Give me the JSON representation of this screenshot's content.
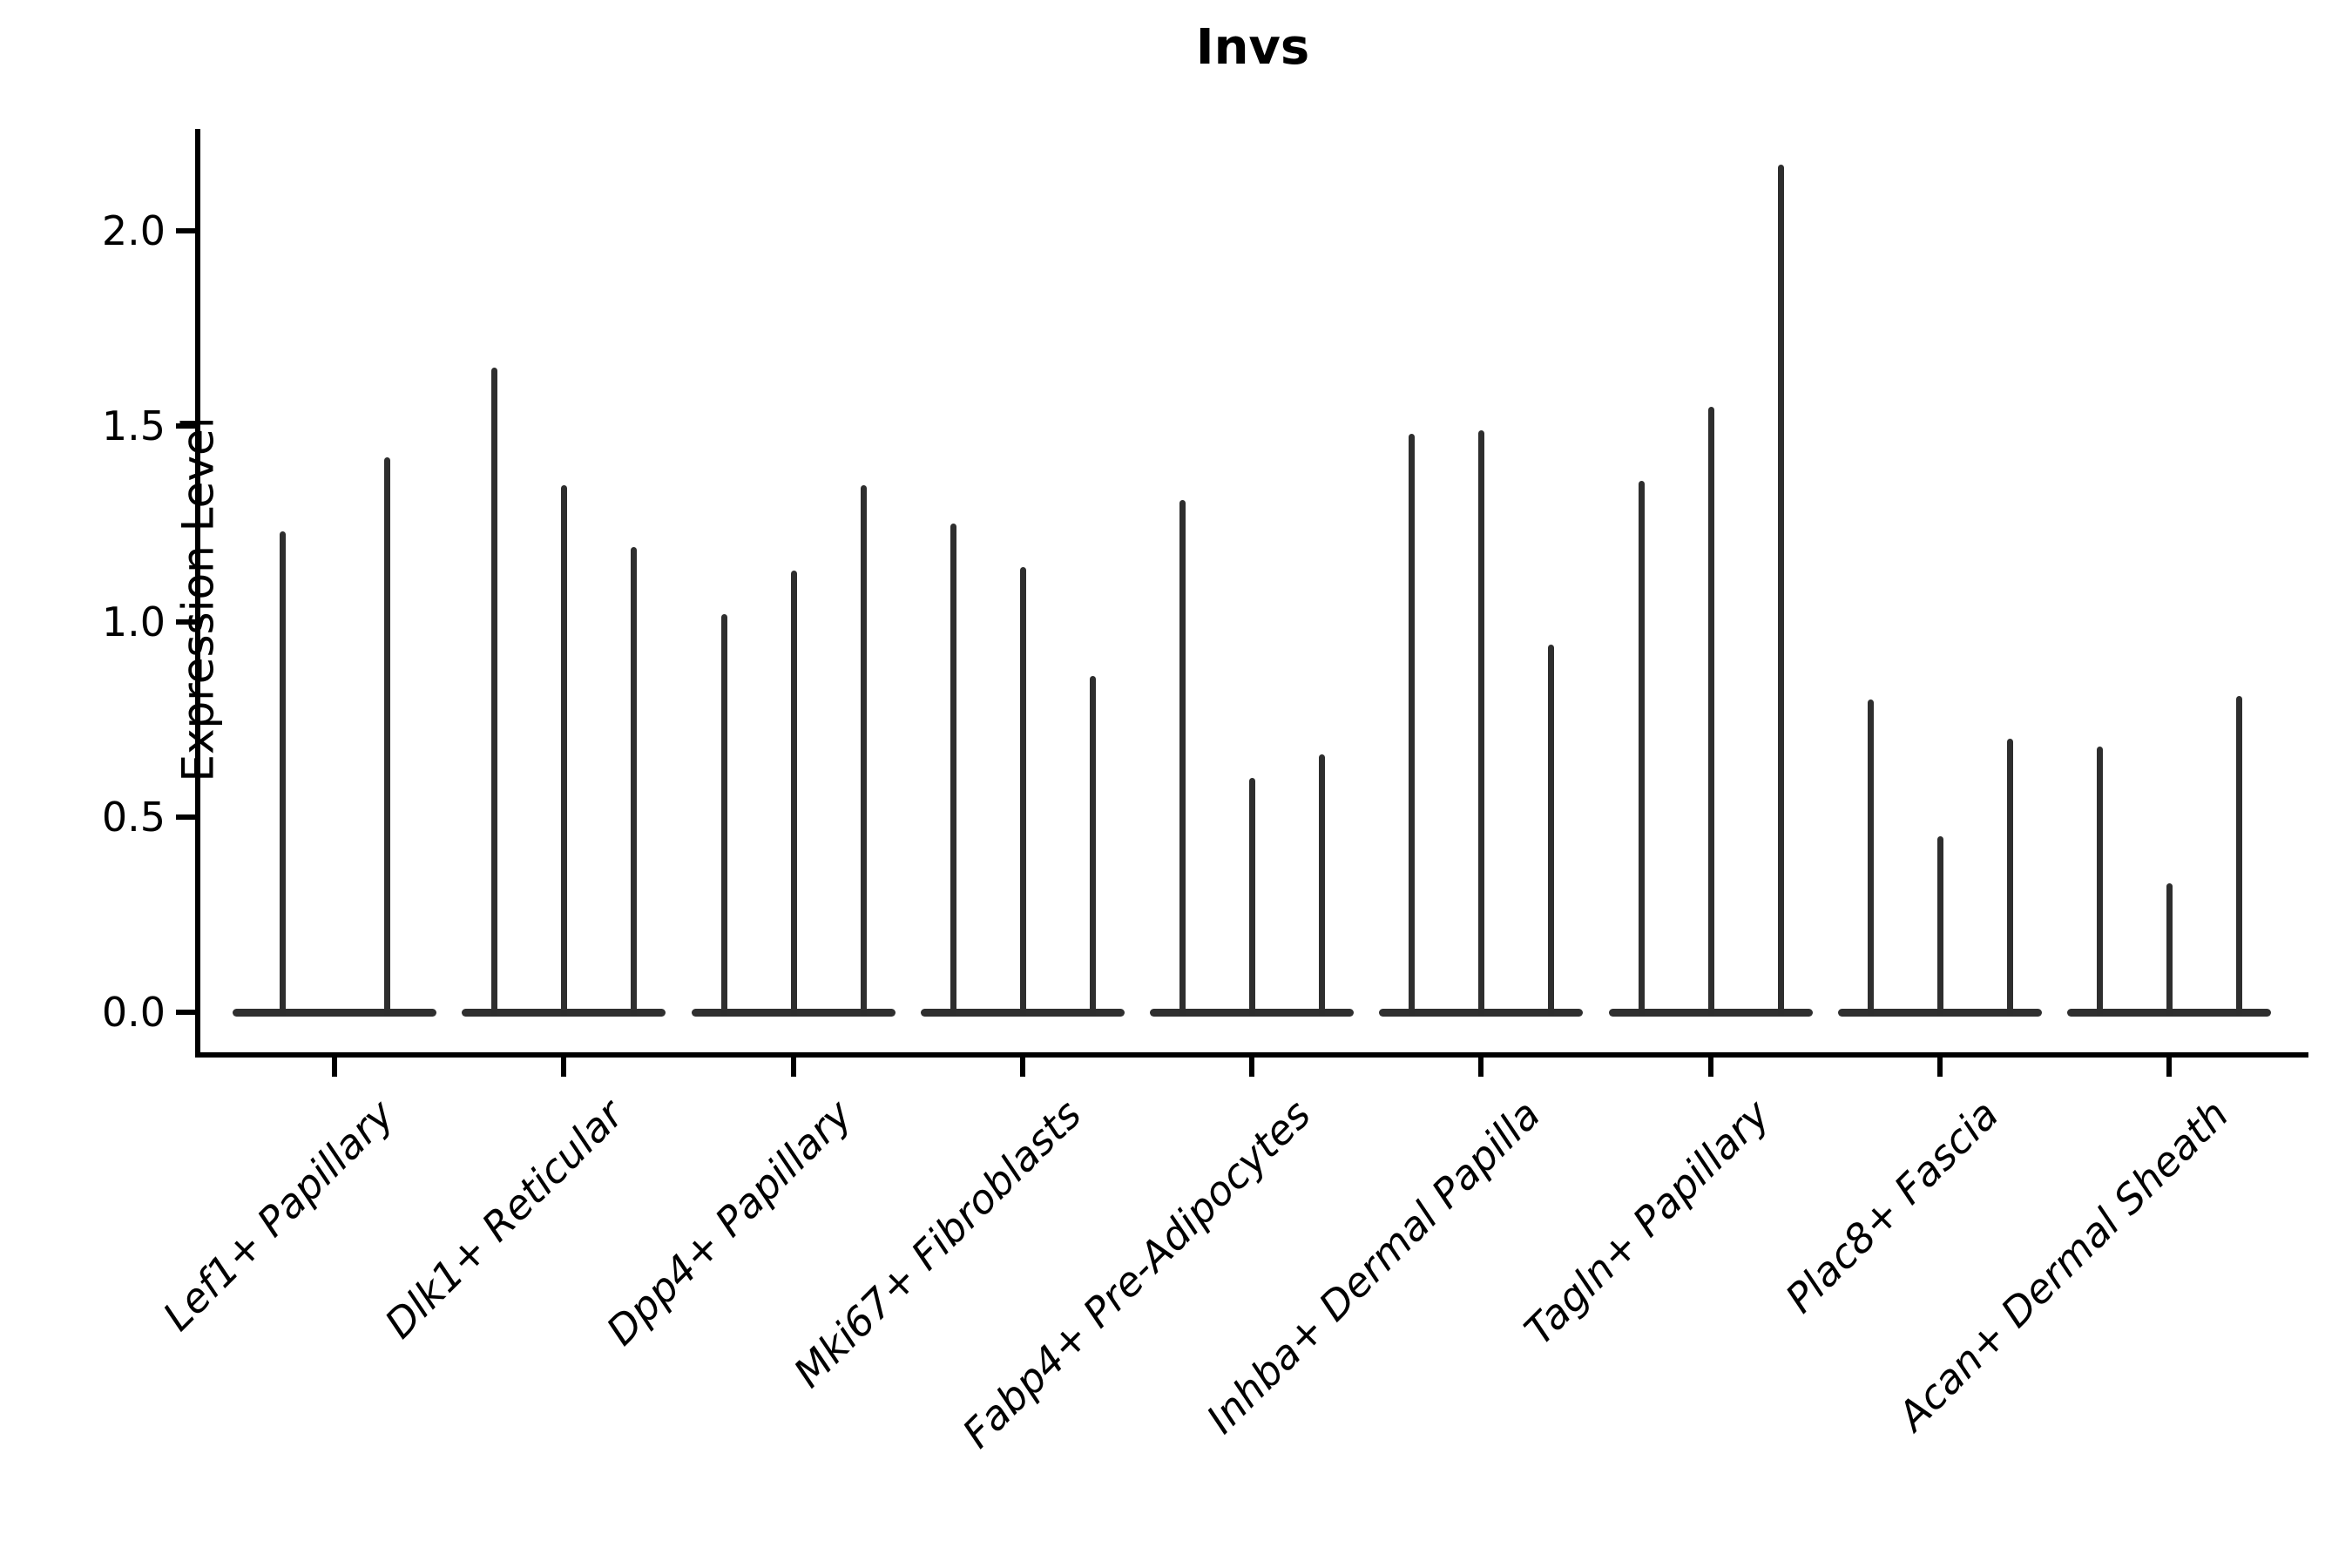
{
  "chart_data": {
    "type": "violin",
    "title": "Invs",
    "xlabel": "",
    "ylabel": "Expression Level",
    "ytick_labels": [
      "0.0",
      "0.5",
      "1.0",
      "1.5",
      "2.0"
    ],
    "ytick_values": [
      0.0,
      0.5,
      1.0,
      1.5,
      2.0
    ],
    "ylim": [
      -0.11,
      2.26
    ],
    "grid": false,
    "legend": "none",
    "style_note": "needle-thin violins: flat dark base at y=0 per category plus 2-3 vertical spikes reaching each violin's max expression",
    "categories": [
      "Lef1+ Papillary",
      "Dlk1+ Reticular",
      "Dpp4+ Papillary",
      "Mki67+ Fibroblasts",
      "Fabp4+ Pre-Adipocytes",
      "Inhba+ Dermal Papilla",
      "Tagln+ Papillary",
      "Plac8+ Fascia",
      "Acan+ Dermal Sheath"
    ],
    "spike_values": [
      [
        1.23,
        1.42
      ],
      [
        1.65,
        1.35,
        1.19
      ],
      [
        1.02,
        1.13,
        1.35
      ],
      [
        1.25,
        1.14,
        0.86
      ],
      [
        1.31,
        0.6,
        0.66
      ],
      [
        1.48,
        1.49,
        0.94
      ],
      [
        1.36,
        1.55,
        2.17
      ],
      [
        0.8,
        0.45,
        0.7
      ],
      [
        0.68,
        0.33,
        0.81
      ]
    ]
  }
}
